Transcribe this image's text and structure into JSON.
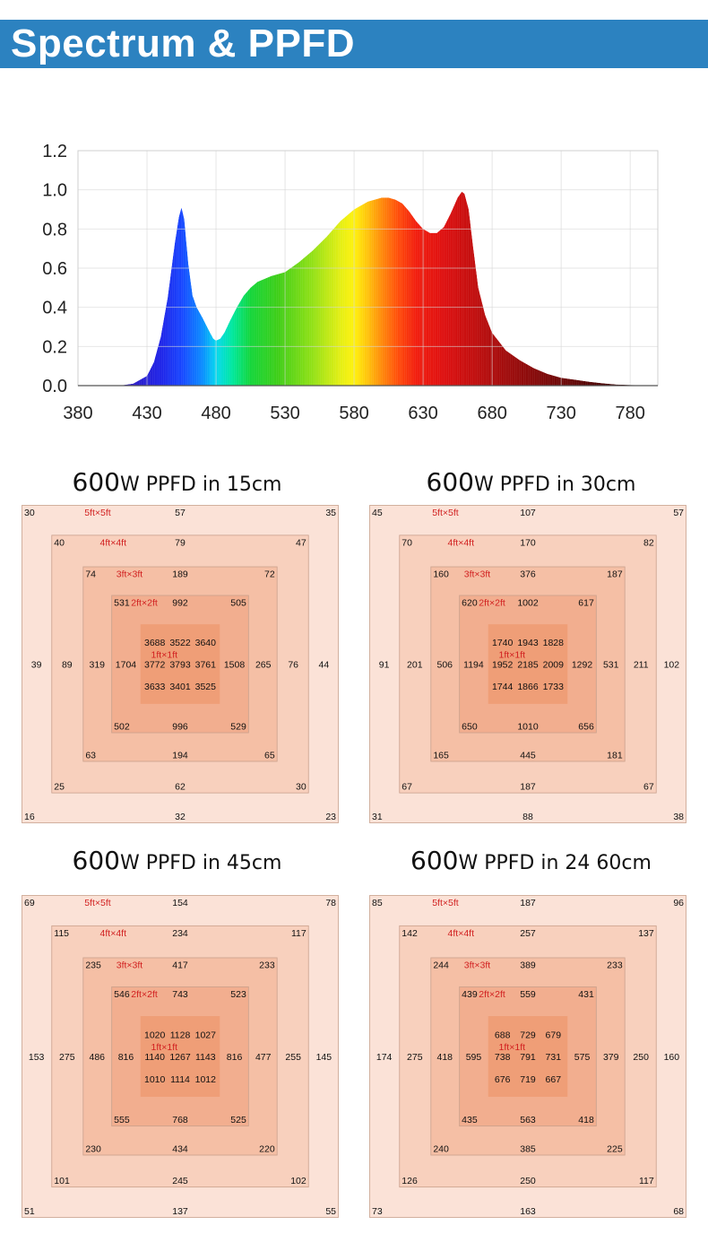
{
  "header": {
    "title": "Spectrum & PPFD"
  },
  "chart_data": [
    {
      "type": "area",
      "x_ticks": [
        380,
        430,
        480,
        530,
        580,
        630,
        680,
        730,
        780
      ],
      "y_ticks": [
        "0.0",
        "0.2",
        "0.4",
        "0.6",
        "0.8",
        "1.0",
        "1.2"
      ],
      "xlim": [
        380,
        800
      ],
      "ylim": [
        0,
        1.2
      ],
      "grid": true,
      "x": [
        410,
        420,
        430,
        435,
        440,
        445,
        450,
        453,
        455,
        457,
        460,
        463,
        466,
        470,
        475,
        478,
        480,
        483,
        486,
        490,
        495,
        500,
        505,
        510,
        520,
        530,
        540,
        550,
        560,
        570,
        580,
        590,
        600,
        605,
        610,
        615,
        620,
        625,
        630,
        635,
        640,
        645,
        650,
        655,
        658,
        660,
        663,
        666,
        670,
        675,
        680,
        690,
        700,
        710,
        720,
        730,
        740,
        750,
        760,
        770,
        780,
        790,
        800
      ],
      "y": [
        0.0,
        0.01,
        0.05,
        0.12,
        0.25,
        0.45,
        0.72,
        0.86,
        0.91,
        0.85,
        0.62,
        0.46,
        0.4,
        0.35,
        0.28,
        0.24,
        0.23,
        0.24,
        0.27,
        0.33,
        0.4,
        0.46,
        0.5,
        0.53,
        0.56,
        0.58,
        0.63,
        0.69,
        0.76,
        0.84,
        0.9,
        0.94,
        0.96,
        0.96,
        0.95,
        0.93,
        0.89,
        0.84,
        0.8,
        0.78,
        0.78,
        0.81,
        0.88,
        0.96,
        0.99,
        0.98,
        0.9,
        0.72,
        0.5,
        0.36,
        0.27,
        0.18,
        0.13,
        0.09,
        0.06,
        0.04,
        0.03,
        0.02,
        0.012,
        0.006,
        0.003,
        0.001,
        0.0
      ]
    },
    {
      "type": "table",
      "title_big": "600",
      "title_rest": "W PPFD in 15cm",
      "rings": [
        {
          "name": "5ft×5ft",
          "tl": "30",
          "t": "57",
          "tr": "35",
          "l": "39",
          "r": "44",
          "bl": "16",
          "b": "32",
          "br": "23"
        },
        {
          "name": "4ft×4ft",
          "tl": "40",
          "t": "79",
          "tr": "47",
          "l": "89",
          "r": "76",
          "bl": "25",
          "b": "62",
          "br": "30"
        },
        {
          "name": "3ft×3ft",
          "tl": "74",
          "t": "189",
          "tr": "72",
          "l": "319",
          "r": "265",
          "bl": "63",
          "b": "194",
          "br": "65"
        },
        {
          "name": "2ft×2ft",
          "tl": "531",
          "t": "992",
          "tr": "505",
          "l": "1704",
          "r": "1508",
          "bl": "502",
          "b": "996",
          "br": "529"
        }
      ],
      "center_label": "1ft×1ft",
      "center": [
        [
          "3688",
          "3522",
          "3640"
        ],
        [
          "3772",
          "3793",
          "3761"
        ],
        [
          "3633",
          "3401",
          "3525"
        ]
      ]
    },
    {
      "type": "table",
      "title_big": "600",
      "title_rest": "W PPFD in 30cm",
      "rings": [
        {
          "name": "5ft×5ft",
          "tl": "45",
          "t": "107",
          "tr": "57",
          "l": "91",
          "r": "102",
          "bl": "31",
          "b": "88",
          "br": "38"
        },
        {
          "name": "4ft×4ft",
          "tl": "70",
          "t": "170",
          "tr": "82",
          "l": "201",
          "r": "211",
          "bl": "67",
          "b": "187",
          "br": "67"
        },
        {
          "name": "3ft×3ft",
          "tl": "160",
          "t": "376",
          "tr": "187",
          "l": "506",
          "r": "531",
          "bl": "165",
          "b": "445",
          "br": "181"
        },
        {
          "name": "2ft×2ft",
          "tl": "620",
          "t": "1002",
          "tr": "617",
          "l": "1194",
          "r": "1292",
          "bl": "650",
          "b": "1010",
          "br": "656"
        }
      ],
      "center_label": "1ft×1ft",
      "center": [
        [
          "1740",
          "1943",
          "1828"
        ],
        [
          "1952",
          "2185",
          "2009"
        ],
        [
          "1744",
          "1866",
          "1733"
        ]
      ]
    },
    {
      "type": "table",
      "title_big": "600",
      "title_rest": "W PPFD in 45cm",
      "rings": [
        {
          "name": "5ft×5ft",
          "tl": "69",
          "t": "154",
          "tr": "78",
          "l": "153",
          "r": "145",
          "bl": "51",
          "b": "137",
          "br": "55"
        },
        {
          "name": "4ft×4ft",
          "tl": "115",
          "t": "234",
          "tr": "117",
          "l": "275",
          "r": "255",
          "bl": "101",
          "b": "245",
          "br": "102"
        },
        {
          "name": "3ft×3ft",
          "tl": "235",
          "t": "417",
          "tr": "233",
          "l": "486",
          "r": "477",
          "bl": "230",
          "b": "434",
          "br": "220"
        },
        {
          "name": "2ft×2ft",
          "tl": "546",
          "t": "743",
          "tr": "523",
          "l": "816",
          "r": "816",
          "bl": "555",
          "b": "768",
          "br": "525"
        }
      ],
      "center_label": "1ft×1ft",
      "center": [
        [
          "1020",
          "1128",
          "1027"
        ],
        [
          "1140",
          "1267",
          "1143"
        ],
        [
          "1010",
          "1114",
          "1012"
        ]
      ]
    },
    {
      "type": "table",
      "title_big": "600",
      "title_rest": "W PPFD in 24 60cm",
      "rings": [
        {
          "name": "5ft×5ft",
          "tl": "85",
          "t": "187",
          "tr": "96",
          "l": "174",
          "r": "160",
          "bl": "73",
          "b": "163",
          "br": "68"
        },
        {
          "name": "4ft×4ft",
          "tl": "142",
          "t": "257",
          "tr": "137",
          "l": "275",
          "r": "250",
          "bl": "126",
          "b": "250",
          "br": "117"
        },
        {
          "name": "3ft×3ft",
          "tl": "244",
          "t": "389",
          "tr": "233",
          "l": "418",
          "r": "379",
          "bl": "240",
          "b": "385",
          "br": "225"
        },
        {
          "name": "2ft×2ft",
          "tl": "439",
          "t": "559",
          "tr": "431",
          "l": "595",
          "r": "575",
          "bl": "435",
          "b": "563",
          "br": "418"
        }
      ],
      "center_label": "1ft×1ft",
      "center": [
        [
          "688",
          "729",
          "679"
        ],
        [
          "738",
          "791",
          "731"
        ],
        [
          "676",
          "719",
          "667"
        ]
      ]
    }
  ],
  "colors": {
    "banner": "#2c82c0",
    "ring_fills": [
      "#fbe2d7",
      "#f8d0bd",
      "#f5bfa5",
      "#f2ae8f"
    ],
    "center_fill": "#ef9e77",
    "ring_label": "#d11f1f"
  }
}
